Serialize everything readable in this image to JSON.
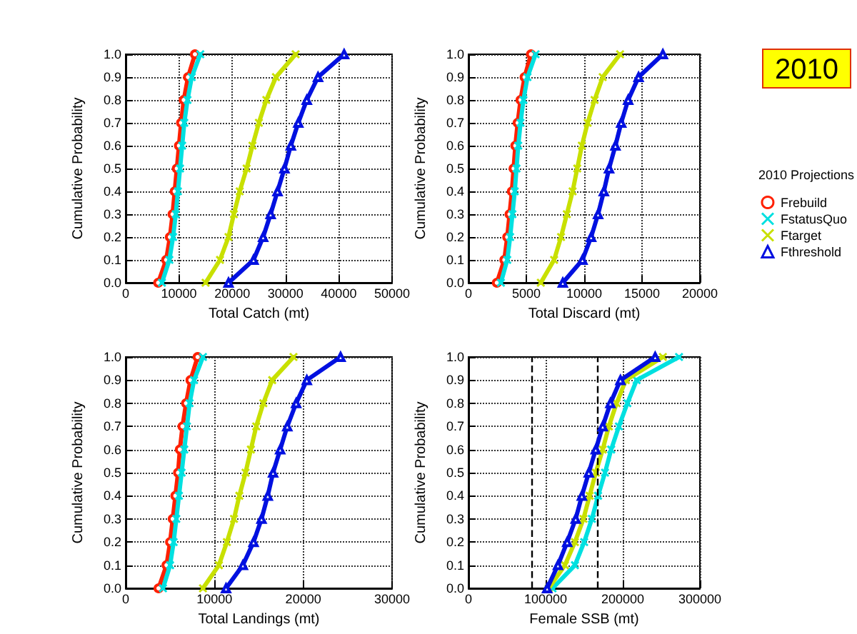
{
  "chart_data": [
    {
      "type": "line",
      "xlabel": "Total Catch (mt)",
      "ylabel": "Cumulative Probability",
      "xlim": [
        0,
        50000
      ],
      "xticks": [
        0,
        10000,
        20000,
        30000,
        40000,
        50000
      ],
      "ylim": [
        0,
        1
      ],
      "yticks": [
        {
          "value": 0,
          "label": "0.0"
        },
        {
          "value": 0.1,
          "label": "0.1"
        },
        {
          "value": 0.2,
          "label": "0.2"
        },
        {
          "value": 0.3,
          "label": "0.3"
        },
        {
          "value": 0.4,
          "label": "0.4"
        },
        {
          "value": 0.5,
          "label": "0.5"
        },
        {
          "value": 0.6,
          "label": "0.6"
        },
        {
          "value": 0.7,
          "label": "0.7"
        },
        {
          "value": 0.8,
          "label": "0.8"
        },
        {
          "value": 0.9,
          "label": "0.9"
        },
        {
          "value": 1,
          "label": "1.0"
        }
      ],
      "grid": true,
      "legend": false,
      "line_style": "solid",
      "series": [
        {
          "color": "#ff2000",
          "marker": "circle",
          "x": [
            6100,
            7600,
            8300,
            8800,
            9200,
            9600,
            10000,
            10400,
            10900,
            11700,
            13000
          ],
          "values": [
            0,
            0.1,
            0.2,
            0.3,
            0.4,
            0.5,
            0.6,
            0.7,
            0.8,
            0.9,
            1
          ]
        },
        {
          "color": "#00e0e0",
          "marker": "cross",
          "x": [
            6800,
            8200,
            8900,
            9400,
            9800,
            10200,
            10600,
            11000,
            11600,
            12400,
            14000
          ],
          "values": [
            0,
            0.1,
            0.2,
            0.3,
            0.4,
            0.5,
            0.6,
            0.7,
            0.8,
            0.9,
            1
          ]
        },
        {
          "color": "#c8e000",
          "marker": "cross",
          "x": [
            15000,
            17700,
            19300,
            20300,
            21400,
            22700,
            23800,
            25000,
            26400,
            28200,
            31900
          ],
          "values": [
            0,
            0.1,
            0.2,
            0.3,
            0.4,
            0.5,
            0.6,
            0.7,
            0.8,
            0.9,
            1
          ]
        },
        {
          "color": "#0010e0",
          "marker": "triangle",
          "x": [
            19300,
            24000,
            25800,
            27200,
            28500,
            29800,
            31000,
            32400,
            34000,
            36100,
            41000
          ],
          "values": [
            0,
            0.1,
            0.2,
            0.3,
            0.4,
            0.5,
            0.6,
            0.7,
            0.8,
            0.9,
            1
          ]
        }
      ]
    },
    {
      "type": "line",
      "xlabel": "Total Discard (mt)",
      "ylabel": "Cumulative Probability",
      "xlim": [
        0,
        20000
      ],
      "xticks": [
        0,
        5000,
        10000,
        15000,
        20000
      ],
      "ylim": [
        0,
        1
      ],
      "yticks": [
        {
          "value": 0,
          "label": "0.0"
        },
        {
          "value": 0.1,
          "label": "0.1"
        },
        {
          "value": 0.2,
          "label": "0.2"
        },
        {
          "value": 0.3,
          "label": "0.3"
        },
        {
          "value": 0.4,
          "label": "0.4"
        },
        {
          "value": 0.5,
          "label": "0.5"
        },
        {
          "value": 0.6,
          "label": "0.6"
        },
        {
          "value": 0.7,
          "label": "0.7"
        },
        {
          "value": 0.8,
          "label": "0.8"
        },
        {
          "value": 0.9,
          "label": "0.9"
        },
        {
          "value": 1,
          "label": "1.0"
        }
      ],
      "grid": true,
      "legend": "right",
      "legend_title": "2010 Projections",
      "annotations": [
        "2010"
      ],
      "line_style": "solid",
      "series": [
        {
          "name": "Frebuild",
          "color": "#ff2000",
          "marker": "circle",
          "x": [
            2450,
            3100,
            3350,
            3550,
            3750,
            3900,
            4050,
            4250,
            4500,
            4850,
            5400
          ],
          "values": [
            0,
            0.1,
            0.2,
            0.3,
            0.4,
            0.5,
            0.6,
            0.7,
            0.8,
            0.9,
            1
          ]
        },
        {
          "name": "FstatusQuo",
          "color": "#00e0e0",
          "marker": "cross",
          "x": [
            2800,
            3350,
            3600,
            3800,
            4000,
            4150,
            4300,
            4500,
            4750,
            5100,
            5800
          ],
          "values": [
            0,
            0.1,
            0.2,
            0.3,
            0.4,
            0.5,
            0.6,
            0.7,
            0.8,
            0.9,
            1
          ]
        },
        {
          "name": "Ftarget",
          "color": "#c8e000",
          "marker": "cross",
          "x": [
            6250,
            7400,
            8000,
            8500,
            9000,
            9400,
            9800,
            10300,
            10900,
            11600,
            13100
          ],
          "values": [
            0,
            0.1,
            0.2,
            0.3,
            0.4,
            0.5,
            0.6,
            0.7,
            0.8,
            0.9,
            1
          ]
        },
        {
          "name": "Fthreshold",
          "color": "#0010e0",
          "marker": "triangle",
          "x": [
            8150,
            9850,
            10600,
            11200,
            11700,
            12150,
            12700,
            13200,
            13800,
            14700,
            16800
          ],
          "values": [
            0,
            0.1,
            0.2,
            0.3,
            0.4,
            0.5,
            0.6,
            0.7,
            0.8,
            0.9,
            1
          ]
        }
      ]
    },
    {
      "type": "line",
      "xlabel": "Total Landings (mt)",
      "ylabel": "Cumulative Probability",
      "xlim": [
        0,
        30000
      ],
      "xticks": [
        0,
        10000,
        20000,
        30000
      ],
      "ylim": [
        0,
        1
      ],
      "yticks": [
        {
          "value": 0,
          "label": "0.0"
        },
        {
          "value": 0.1,
          "label": "0.1"
        },
        {
          "value": 0.2,
          "label": "0.2"
        },
        {
          "value": 0.3,
          "label": "0.3"
        },
        {
          "value": 0.4,
          "label": "0.4"
        },
        {
          "value": 0.5,
          "label": "0.5"
        },
        {
          "value": 0.6,
          "label": "0.6"
        },
        {
          "value": 0.7,
          "label": "0.7"
        },
        {
          "value": 0.8,
          "label": "0.8"
        },
        {
          "value": 0.9,
          "label": "0.9"
        },
        {
          "value": 1,
          "label": "1.0"
        }
      ],
      "grid": true,
      "legend": false,
      "line_style": "solid",
      "series": [
        {
          "color": "#ff2000",
          "marker": "circle",
          "x": [
            3700,
            4600,
            5000,
            5300,
            5600,
            5900,
            6100,
            6400,
            6800,
            7300,
            8100
          ],
          "values": [
            0,
            0.1,
            0.2,
            0.3,
            0.4,
            0.5,
            0.6,
            0.7,
            0.8,
            0.9,
            1
          ]
        },
        {
          "color": "#00e0e0",
          "marker": "cross",
          "x": [
            4200,
            5000,
            5400,
            5700,
            6000,
            6300,
            6600,
            6900,
            7200,
            7700,
            8700
          ],
          "values": [
            0,
            0.1,
            0.2,
            0.3,
            0.4,
            0.5,
            0.6,
            0.7,
            0.8,
            0.9,
            1
          ]
        },
        {
          "color": "#c8e000",
          "marker": "cross",
          "x": [
            8700,
            10500,
            11400,
            12200,
            12800,
            13500,
            14100,
            14700,
            15500,
            16500,
            18900
          ],
          "values": [
            0,
            0.1,
            0.2,
            0.3,
            0.4,
            0.5,
            0.6,
            0.7,
            0.8,
            0.9,
            1
          ]
        },
        {
          "color": "#0010e0",
          "marker": "triangle",
          "x": [
            11300,
            13200,
            14400,
            15300,
            16000,
            16600,
            17400,
            18200,
            19200,
            20400,
            24200
          ],
          "values": [
            0,
            0.1,
            0.2,
            0.3,
            0.4,
            0.5,
            0.6,
            0.7,
            0.8,
            0.9,
            1
          ]
        }
      ]
    },
    {
      "type": "line",
      "xlabel": "Female SSB (mt)",
      "ylabel": "Cumulative Probability",
      "xlim": [
        0,
        300000
      ],
      "xticks": [
        0,
        100000,
        200000,
        300000
      ],
      "ylim": [
        0,
        1
      ],
      "yticks": [
        {
          "value": 0,
          "label": "0.0"
        },
        {
          "value": 0.1,
          "label": "0.1"
        },
        {
          "value": 0.2,
          "label": "0.2"
        },
        {
          "value": 0.3,
          "label": "0.3"
        },
        {
          "value": 0.4,
          "label": "0.4"
        },
        {
          "value": 0.5,
          "label": "0.5"
        },
        {
          "value": 0.6,
          "label": "0.6"
        },
        {
          "value": 0.7,
          "label": "0.7"
        },
        {
          "value": 0.8,
          "label": "0.8"
        },
        {
          "value": 0.9,
          "label": "0.9"
        },
        {
          "value": 1,
          "label": "1.0"
        }
      ],
      "grid": true,
      "legend": false,
      "line_style": "solid",
      "ref_lines": [
        {
          "axis": "x",
          "value": 82000,
          "color": "#000000",
          "line_style": "dashed"
        },
        {
          "axis": "x",
          "value": 167000,
          "color": "#000000",
          "line_style": "dashed"
        }
      ],
      "series": [
        {
          "color": "#ff2000",
          "marker": "circle",
          "x": [
            null,
            null,
            null,
            null,
            null,
            null,
            null,
            null,
            null,
            null,
            null
          ],
          "values": [
            null,
            null,
            null,
            null,
            null,
            null,
            null,
            null,
            null,
            null,
            null
          ]
        },
        {
          "color": "#00e0e0",
          "marker": "cross",
          "x": [
            109000,
            138000,
            150000,
            160000,
            168000,
            177000,
            185000,
            195000,
            206000,
            218000,
            273000
          ],
          "values": [
            0,
            0.1,
            0.2,
            0.3,
            0.4,
            0.5,
            0.6,
            0.7,
            0.8,
            0.9,
            1
          ]
        },
        {
          "color": "#c8e000",
          "marker": "cross",
          "x": [
            104000,
            125000,
            138000,
            149000,
            157000,
            165000,
            174000,
            182000,
            192000,
            204000,
            252000
          ],
          "values": [
            0,
            0.1,
            0.2,
            0.3,
            0.4,
            0.5,
            0.6,
            0.7,
            0.8,
            0.9,
            1
          ]
        },
        {
          "color": "#0010e0",
          "marker": "triangle",
          "x": [
            102000,
            116000,
            128000,
            139000,
            147000,
            156000,
            165000,
            174000,
            184000,
            197000,
            242000
          ],
          "values": [
            0,
            0.1,
            0.2,
            0.3,
            0.4,
            0.5,
            0.6,
            0.7,
            0.8,
            0.9,
            1
          ]
        }
      ]
    }
  ]
}
